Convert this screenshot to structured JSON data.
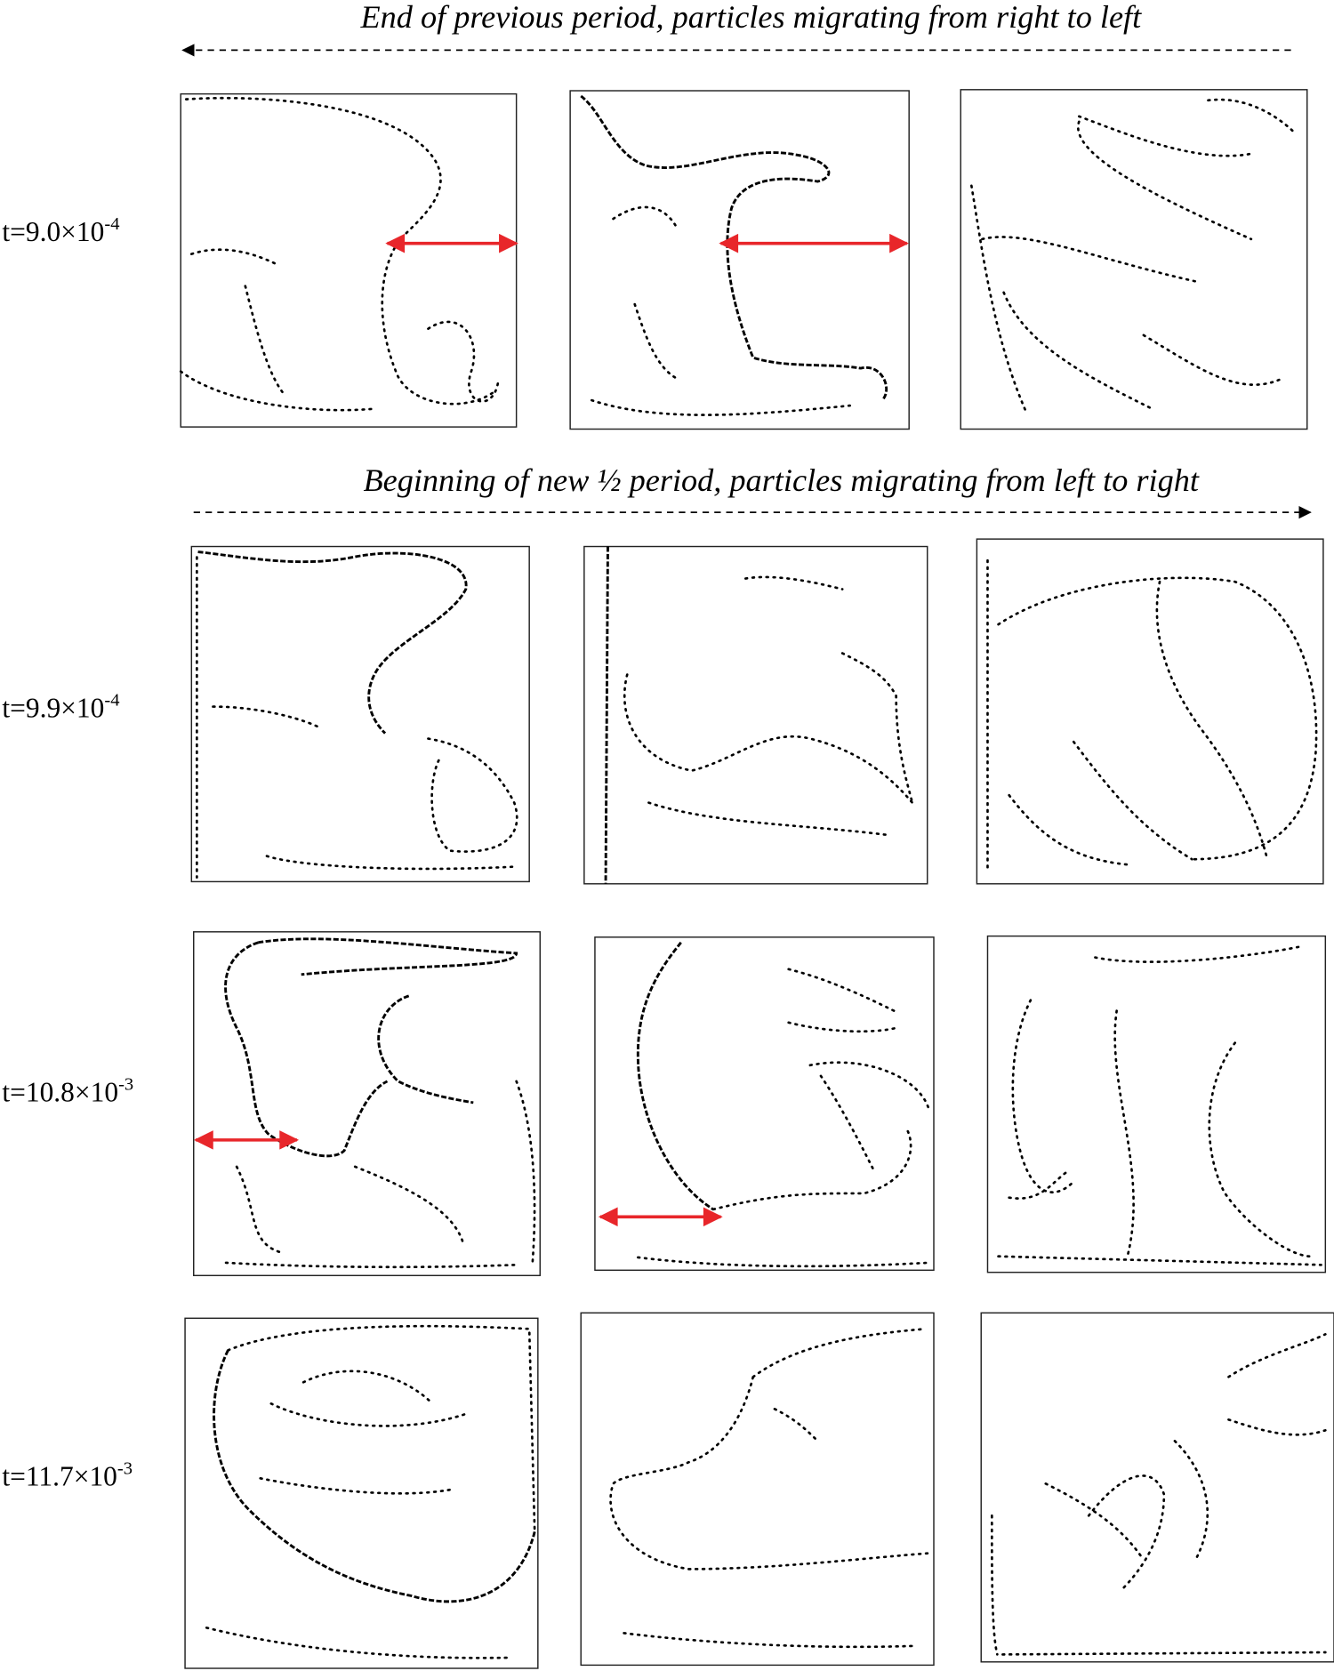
{
  "captions": {
    "top": "End of previous period, particles migrating from right to left",
    "middle": "Beginning of new ½ period, particles migrating from left to right"
  },
  "time_labels": [
    {
      "prefix": "t=9.0×10",
      "exponent": "-4"
    },
    {
      "prefix": "t=9.9×10",
      "exponent": "-4"
    },
    {
      "prefix": "t=10.8×10",
      "exponent": "-3"
    },
    {
      "prefix": "t=11.7×10",
      "exponent": "-3"
    }
  ]
}
